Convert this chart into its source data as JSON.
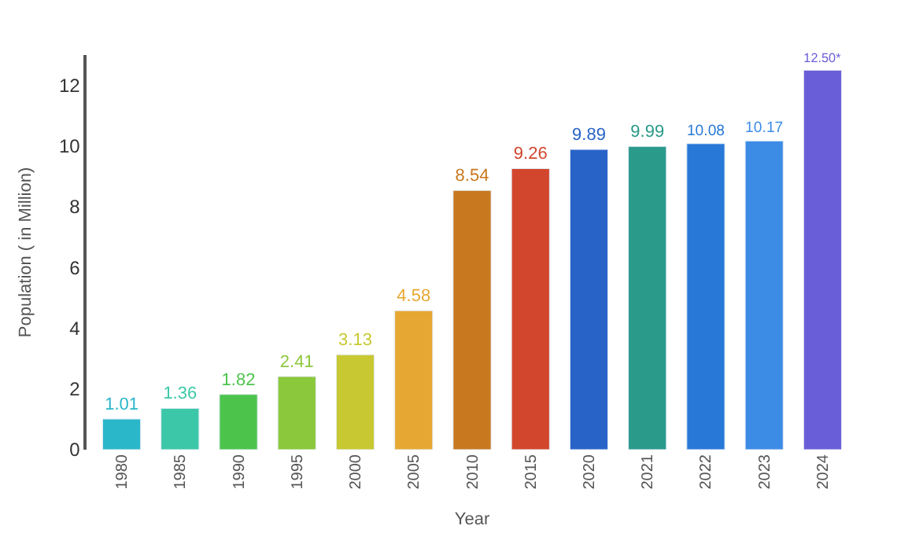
{
  "chart_data": {
    "type": "bar",
    "xlabel": "Year",
    "ylabel": "Population ( in Million)",
    "categories": [
      "1980",
      "1985",
      "1990",
      "1995",
      "2000",
      "2005",
      "2010",
      "2015",
      "2020",
      "2021",
      "2022",
      "2023",
      "2024"
    ],
    "values": [
      1.01,
      1.36,
      1.82,
      2.41,
      3.13,
      4.58,
      8.54,
      9.26,
      9.89,
      9.99,
      10.08,
      10.17,
      12.5
    ],
    "value_labels": [
      "1.01",
      "1.36",
      "1.82",
      "2.41",
      "3.13",
      "4.58",
      "8.54",
      "9.26",
      "9.89",
      "9.99",
      "10.08",
      "10.17",
      "12.50*"
    ],
    "colors": [
      "#2ab7c9",
      "#3cc8a8",
      "#4cc44c",
      "#8cc83c",
      "#c8c832",
      "#e6a832",
      "#c8781e",
      "#d2462d",
      "#2864c8",
      "#2a9a8a",
      "#2878d8",
      "#3c8ce6",
      "#6a5ed8"
    ],
    "ylim": [
      0,
      13
    ],
    "yticks": [
      0,
      2,
      4,
      6,
      8,
      10,
      12
    ]
  }
}
